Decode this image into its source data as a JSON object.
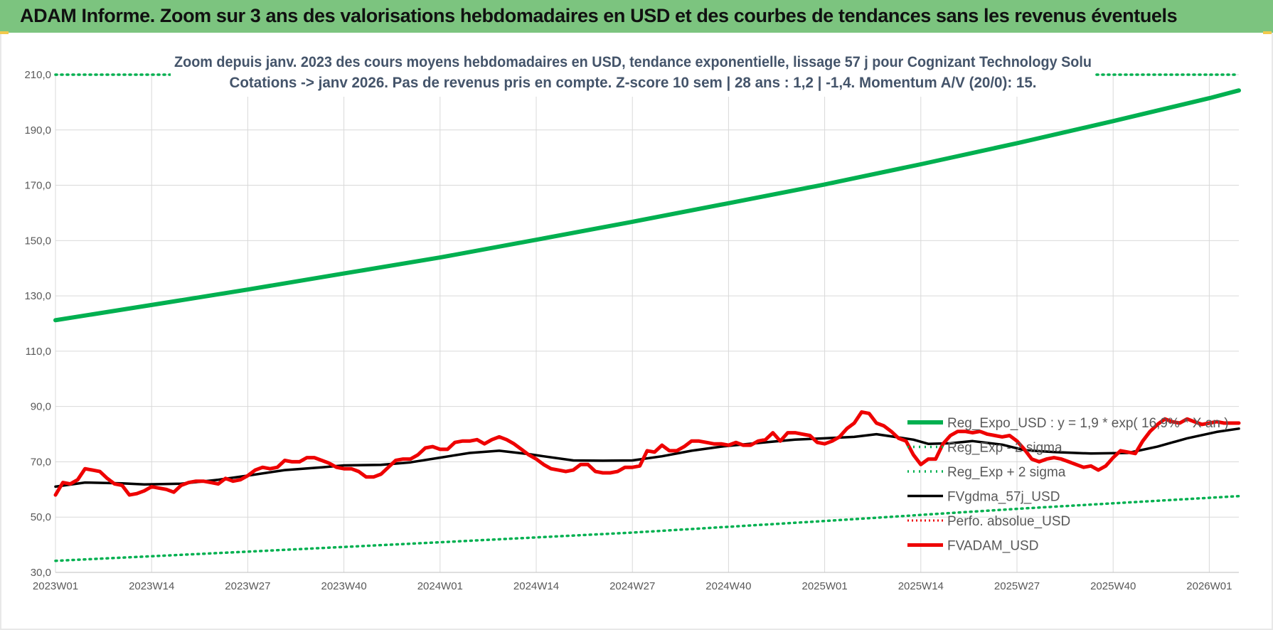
{
  "header": {
    "title": "ADAM Informe. Zoom sur 3 ans des valorisations hebdomadaires en USD et des courbes de tendances sans les revenus éventuels"
  },
  "colors": {
    "banner": "#7cc47f",
    "reg_expo": "#00b050",
    "fvadam": "#ee0000",
    "fvgdma": "#000000",
    "grid": "#d9d9d9"
  },
  "chart_data": {
    "type": "line",
    "subtitle_line1": "Zoom depuis janv. 2023 des cours moyens hebdomadaires en USD, tendance exponentielle, lissage 57 j pour Cognizant Technology Solu",
    "subtitle_line2": "Cotations -> janv 2026. Pas de revenus pris en compte. Z-score 10 sem | 28 ans : 1,2 | -1,4. Momentum A/V (20/0): 15.",
    "ylim": [
      30,
      210
    ],
    "y_ticks": [
      "30,0",
      "50,0",
      "70,0",
      "90,0",
      "110,0",
      "130,0",
      "150,0",
      "170,0",
      "190,0",
      "210,0"
    ],
    "x_range_weeks": [
      0,
      160
    ],
    "x_ticks": [
      {
        "label": "2023W01",
        "week": 0
      },
      {
        "label": "2023W14",
        "week": 13
      },
      {
        "label": "2023W27",
        "week": 26
      },
      {
        "label": "2023W40",
        "week": 39
      },
      {
        "label": "2024W01",
        "week": 52
      },
      {
        "label": "2024W14",
        "week": 65
      },
      {
        "label": "2024W27",
        "week": 78
      },
      {
        "label": "2024W40",
        "week": 91
      },
      {
        "label": "2025W01",
        "week": 104
      },
      {
        "label": "2025W14",
        "week": 117
      },
      {
        "label": "2025W27",
        "week": 130
      },
      {
        "label": "2025W40",
        "week": 143
      },
      {
        "label": "2026W01",
        "week": 156
      }
    ],
    "grid": true,
    "legend_position": "right",
    "series": [
      {
        "name": "Reg_Expo_USD : y = 1,9 * exp( 16,9% * X an )",
        "style": "solid-thick",
        "points": [
          [
            0,
            121.2
          ],
          [
            13,
            126.7
          ],
          [
            26,
            132.3
          ],
          [
            39,
            138.1
          ],
          [
            52,
            143.9
          ],
          [
            65,
            150.3
          ],
          [
            78,
            156.8
          ],
          [
            91,
            163.5
          ],
          [
            104,
            170.3
          ],
          [
            117,
            177.6
          ],
          [
            130,
            185.2
          ],
          [
            143,
            193.2
          ],
          [
            156,
            201.5
          ],
          [
            159,
            203.6
          ],
          [
            160,
            204.3
          ]
        ]
      },
      {
        "name": "Reg_Exp - 2 sigma",
        "style": "dotted",
        "points": [
          [
            0,
            34.2
          ],
          [
            26,
            37.5
          ],
          [
            52,
            40.9
          ],
          [
            78,
            44.4
          ],
          [
            104,
            48.6
          ],
          [
            130,
            53.0
          ],
          [
            160,
            57.6
          ]
        ]
      },
      {
        "name": "Reg_Exp + 2 sigma",
        "style": "dotted",
        "points": [
          [
            0,
            210.0
          ],
          [
            160,
            210.0
          ]
        ]
      },
      {
        "name": "FVgdma_57j_USD",
        "style": "solid",
        "points": [
          [
            0,
            61.0
          ],
          [
            4,
            62.5
          ],
          [
            9,
            62.2
          ],
          [
            12,
            61.8
          ],
          [
            17,
            62.1
          ],
          [
            22,
            63.5
          ],
          [
            26,
            65.0
          ],
          [
            31,
            67.0
          ],
          [
            36,
            68.0
          ],
          [
            39,
            68.7
          ],
          [
            44,
            68.9
          ],
          [
            48,
            69.8
          ],
          [
            52,
            71.5
          ],
          [
            56,
            73.2
          ],
          [
            60,
            74.0
          ],
          [
            64,
            72.8
          ],
          [
            66,
            72.0
          ],
          [
            70,
            70.5
          ],
          [
            74,
            70.4
          ],
          [
            78,
            70.5
          ],
          [
            82,
            72.0
          ],
          [
            86,
            74.0
          ],
          [
            90,
            75.5
          ],
          [
            95,
            76.8
          ],
          [
            100,
            78.0
          ],
          [
            104,
            78.5
          ],
          [
            108,
            79.0
          ],
          [
            111,
            80.0
          ],
          [
            116,
            78.0
          ],
          [
            118,
            76.5
          ],
          [
            121,
            76.7
          ],
          [
            124,
            77.5
          ],
          [
            128,
            76.2
          ],
          [
            131,
            74.2
          ],
          [
            135,
            73.5
          ],
          [
            140,
            73.0
          ],
          [
            145,
            73.2
          ],
          [
            149,
            75.5
          ],
          [
            153,
            78.5
          ],
          [
            157,
            80.8
          ],
          [
            160,
            82.0
          ]
        ]
      },
      {
        "name": "Perfo. absolue_USD",
        "style": "dotted",
        "points": []
      },
      {
        "name": "FVADAM_USD",
        "style": "solid-thick",
        "points": [
          [
            0,
            58
          ],
          [
            1,
            62.5
          ],
          [
            2,
            62
          ],
          [
            3,
            63.5
          ],
          [
            4,
            67.5
          ],
          [
            5,
            67
          ],
          [
            6,
            66.5
          ],
          [
            7,
            64
          ],
          [
            8,
            62
          ],
          [
            9,
            61.5
          ],
          [
            10,
            58
          ],
          [
            11,
            58.5
          ],
          [
            12,
            59.5
          ],
          [
            13,
            61
          ],
          [
            14,
            60.5
          ],
          [
            15,
            60
          ],
          [
            16,
            59
          ],
          [
            17,
            61.5
          ],
          [
            18,
            62.5
          ],
          [
            19,
            63
          ],
          [
            20,
            63
          ],
          [
            21,
            62.5
          ],
          [
            22,
            62
          ],
          [
            23,
            64
          ],
          [
            24,
            63
          ],
          [
            25,
            63.5
          ],
          [
            26,
            65
          ],
          [
            27,
            67
          ],
          [
            28,
            68
          ],
          [
            29,
            67.5
          ],
          [
            30,
            68
          ],
          [
            31,
            70.5
          ],
          [
            32,
            70
          ],
          [
            33,
            70
          ],
          [
            34,
            71.5
          ],
          [
            35,
            71.5
          ],
          [
            36,
            70.5
          ],
          [
            37,
            69.5
          ],
          [
            38,
            68
          ],
          [
            39,
            67.5
          ],
          [
            40,
            67.5
          ],
          [
            41,
            66.5
          ],
          [
            42,
            64.5
          ],
          [
            43,
            64.5
          ],
          [
            44,
            65.5
          ],
          [
            45,
            68
          ],
          [
            46,
            70.5
          ],
          [
            47,
            71
          ],
          [
            48,
            71
          ],
          [
            49,
            72.5
          ],
          [
            50,
            75
          ],
          [
            51,
            75.5
          ],
          [
            52,
            74.5
          ],
          [
            53,
            74.5
          ],
          [
            54,
            77
          ],
          [
            55,
            77.5
          ],
          [
            56,
            77.5
          ],
          [
            57,
            78
          ],
          [
            58,
            76.5
          ],
          [
            59,
            78
          ],
          [
            60,
            79
          ],
          [
            61,
            78
          ],
          [
            62,
            76.5
          ],
          [
            63,
            74.5
          ],
          [
            64,
            72.5
          ],
          [
            65,
            71
          ],
          [
            66,
            69
          ],
          [
            67,
            67.5
          ],
          [
            68,
            67
          ],
          [
            69,
            66.5
          ],
          [
            70,
            67
          ],
          [
            71,
            69
          ],
          [
            72,
            69
          ],
          [
            73,
            66.5
          ],
          [
            74,
            66
          ],
          [
            75,
            66
          ],
          [
            76,
            66.5
          ],
          [
            77,
            68
          ],
          [
            78,
            68
          ],
          [
            79,
            68.5
          ],
          [
            80,
            74
          ],
          [
            81,
            73.5
          ],
          [
            82,
            76
          ],
          [
            83,
            74
          ],
          [
            84,
            74
          ],
          [
            85,
            75.5
          ],
          [
            86,
            77.5
          ],
          [
            87,
            77.5
          ],
          [
            88,
            77
          ],
          [
            89,
            76.5
          ],
          [
            90,
            76.5
          ],
          [
            91,
            76
          ],
          [
            92,
            77
          ],
          [
            93,
            76
          ],
          [
            94,
            76
          ],
          [
            95,
            77.5
          ],
          [
            96,
            78
          ],
          [
            97,
            80.5
          ],
          [
            98,
            77.5
          ],
          [
            99,
            80.5
          ],
          [
            100,
            80.5
          ],
          [
            101,
            80
          ],
          [
            102,
            79.5
          ],
          [
            103,
            77
          ],
          [
            104,
            76.5
          ],
          [
            105,
            77.5
          ],
          [
            106,
            79
          ],
          [
            107,
            82
          ],
          [
            108,
            84
          ],
          [
            109,
            88
          ],
          [
            110,
            87.5
          ],
          [
            111,
            84
          ],
          [
            112,
            83
          ],
          [
            113,
            81
          ],
          [
            114,
            78.5
          ],
          [
            115,
            77.5
          ],
          [
            116,
            72.5
          ],
          [
            117,
            69
          ],
          [
            118,
            71
          ],
          [
            119,
            71
          ],
          [
            120,
            76.5
          ],
          [
            121,
            79.5
          ],
          [
            122,
            81
          ],
          [
            123,
            81
          ],
          [
            124,
            80.5
          ],
          [
            125,
            81
          ],
          [
            126,
            80
          ],
          [
            127,
            79.5
          ],
          [
            128,
            79
          ],
          [
            129,
            79.5
          ],
          [
            130,
            77.5
          ],
          [
            131,
            74.5
          ],
          [
            132,
            71
          ],
          [
            133,
            70
          ],
          [
            134,
            71
          ],
          [
            135,
            71.5
          ],
          [
            136,
            71
          ],
          [
            137,
            70
          ],
          [
            138,
            69
          ],
          [
            139,
            68
          ],
          [
            140,
            68.5
          ],
          [
            141,
            67
          ],
          [
            142,
            68.5
          ],
          [
            143,
            71.5
          ],
          [
            144,
            74
          ],
          [
            145,
            73.5
          ],
          [
            146,
            73
          ],
          [
            147,
            77.5
          ],
          [
            148,
            81
          ],
          [
            149,
            83.5
          ],
          [
            150,
            85.5
          ],
          [
            151,
            84.5
          ],
          [
            152,
            84
          ],
          [
            153,
            85.5
          ],
          [
            154,
            84.5
          ],
          [
            155,
            83.5
          ],
          [
            156,
            84
          ],
          [
            157,
            84.5
          ],
          [
            158,
            84
          ],
          [
            159,
            84
          ],
          [
            160,
            84
          ]
        ]
      }
    ],
    "legend": [
      {
        "label": "Reg_Expo_USD : y = 1,9 * exp( 16,9% * X an )",
        "swatch": "solid-green-thick"
      },
      {
        "label": "Reg_Exp - 2 sigma",
        "swatch": "dotted-green"
      },
      {
        "label": "Reg_Exp + 2 sigma",
        "swatch": "dotted-green"
      },
      {
        "label": "FVgdma_57j_USD",
        "swatch": "solid-black"
      },
      {
        "label": "Perfo. absolue_USD",
        "swatch": "dotted-red"
      },
      {
        "label": "FVADAM_USD",
        "swatch": "solid-red-thick"
      }
    ]
  }
}
